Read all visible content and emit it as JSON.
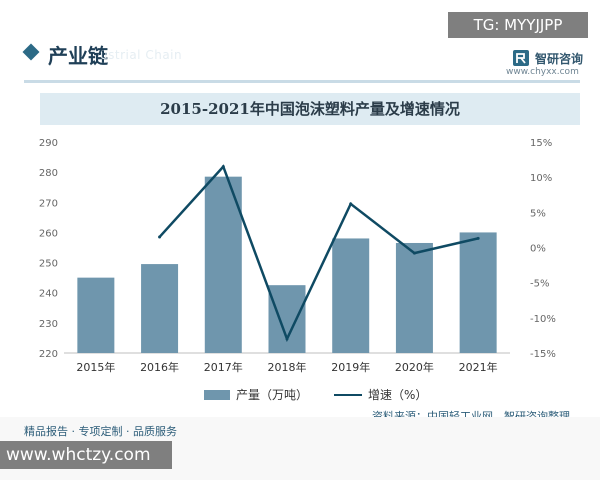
{
  "header": {
    "section_title": "产业链",
    "section_ghost": "ustrial Chain",
    "brand_name": "智研咨询",
    "brand_url": "www.chyxx.com",
    "tag": "TG: MYYJJPP"
  },
  "colors": {
    "bar": "#6f96ad",
    "line": "#0f4a63",
    "title_bg": "#deebf2",
    "accent": "#2c6a86"
  },
  "chart_data": {
    "type": "bar",
    "title": "2015-2021年中国泡沫塑料产量及增速情况",
    "categories": [
      "2015年",
      "2016年",
      "2017年",
      "2018年",
      "2019年",
      "2020年",
      "2021年"
    ],
    "series": [
      {
        "name": "产量（万吨）",
        "type": "bar",
        "axis": "left",
        "values": [
          245,
          249.5,
          278.5,
          242.5,
          258,
          256.5,
          260
        ]
      },
      {
        "name": "增速（%）",
        "type": "line",
        "axis": "right",
        "values": [
          null,
          1.5,
          11.5,
          -13,
          6.2,
          -0.8,
          1.3
        ]
      }
    ],
    "ylim": [
      220,
      290
    ],
    "y_ticks": [
      "290",
      "280",
      "270",
      "260",
      "250",
      "240",
      "230",
      "220"
    ],
    "y2lim": [
      -15,
      15
    ],
    "y2_ticks": [
      "15%",
      "10%",
      "5%",
      "0%",
      "-5%",
      "-10%",
      "-15%"
    ],
    "legend_position": "bottom"
  },
  "source_text": "资料来源：中国轻工业网、智研咨询整理",
  "footer": {
    "slogan": "精品报告 · 专项定制 · 品质服务",
    "watermark_url": "www.whctzy.com"
  }
}
